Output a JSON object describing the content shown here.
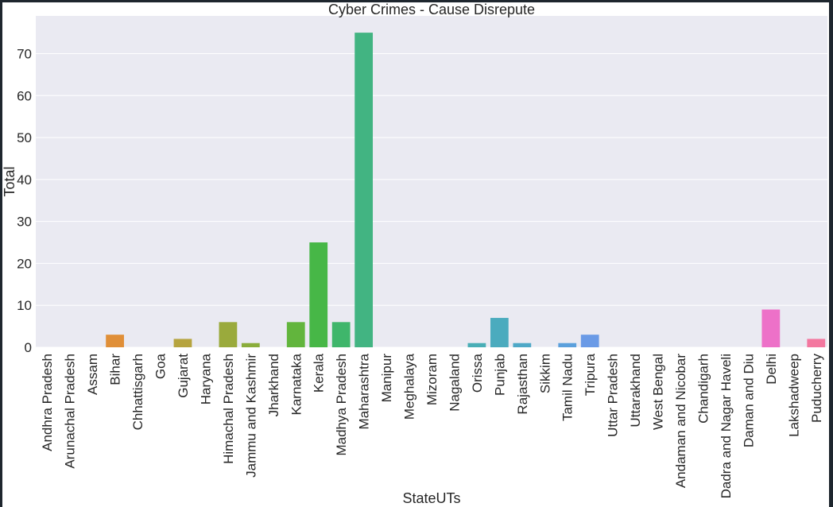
{
  "chart_data": {
    "type": "bar",
    "title": "Cyber Crimes - Cause Disrepute",
    "xlabel": "StateUTs",
    "ylabel": "Total",
    "ylim": [
      0,
      79
    ],
    "yticks": [
      0,
      10,
      20,
      30,
      40,
      50,
      60,
      70
    ],
    "grid": true,
    "categories": [
      "Andhra Pradesh",
      "Arunachal Pradesh",
      "Assam",
      "Bihar",
      "Chhattisgarh",
      "Goa",
      "Gujarat",
      "Haryana",
      "Himachal Pradesh",
      "Jammu and Kashmir",
      "Jharkhand",
      "Karnataka",
      "Kerala",
      "Madhya Pradesh",
      "Maharashtra",
      "Manipur",
      "Meghalaya",
      "Mizoram",
      "Nagaland",
      "Orissa",
      "Punjab",
      "Rajasthan",
      "Sikkim",
      "Tamil Nadu",
      "Tripura",
      "Uttar Pradesh",
      "Uttarakhand",
      "West Bengal",
      "Andaman and Nicobar",
      "Chandigarh",
      "Dadra and Nagar Haveli",
      "Daman and Diu",
      "Delhi",
      "Lakshadweep",
      "Puducherry"
    ],
    "values": [
      0,
      0,
      0,
      3,
      0,
      0,
      2,
      0,
      6,
      1,
      0,
      6,
      25,
      6,
      75,
      0,
      0,
      0,
      0,
      1,
      7,
      1,
      0,
      1,
      3,
      0,
      0,
      0,
      0,
      0,
      0,
      0,
      9,
      0,
      2
    ],
    "colors": [
      "#f37784",
      "#f07b5f",
      "#e6842f",
      "#e08f38",
      "#d29840",
      "#c49f3f",
      "#b6a43f",
      "#a8a83e",
      "#9aaa3c",
      "#8aad3b",
      "#79b13a",
      "#62b53d",
      "#47b747",
      "#3fb66b",
      "#42b482",
      "#43b391",
      "#44b29c",
      "#45b0a5",
      "#47afad",
      "#49aeb6",
      "#4babbe",
      "#4ea8c7",
      "#52a5d1",
      "#5ba0dc",
      "#6a9ae6",
      "#8193ee",
      "#978cf1",
      "#ab86f2",
      "#be7ff2",
      "#cd78ed",
      "#da72e4",
      "#e570d7",
      "#ed71c8",
      "#f174b4",
      "#f3779f"
    ]
  }
}
